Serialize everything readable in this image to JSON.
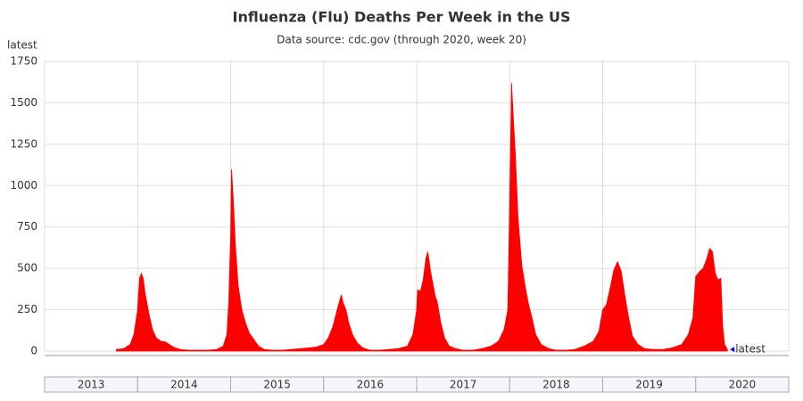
{
  "chart_data": {
    "type": "area",
    "title": "Influenza (Flu) Deaths Per Week in the US",
    "subtitle": "Data source: cdc.gov (through 2020, week 20)",
    "y_label": "latest",
    "annotation": "latest",
    "color": "#ff0000",
    "annotation_color": "#0000ff",
    "grid": true,
    "xlim": [
      2013,
      2021
    ],
    "xticks": [
      {
        "value": 2013,
        "label": "2013"
      },
      {
        "value": 2014,
        "label": "2014"
      },
      {
        "value": 2015,
        "label": "2015"
      },
      {
        "value": 2016,
        "label": "2016"
      },
      {
        "value": 2017,
        "label": "2017"
      },
      {
        "value": 2018,
        "label": "2018"
      },
      {
        "value": 2019,
        "label": "2019"
      },
      {
        "value": 2020,
        "label": "2020"
      }
    ],
    "ylim": [
      0,
      1750
    ],
    "yticks": [
      0,
      250,
      500,
      750,
      1000,
      1250,
      1500,
      1750
    ],
    "x": [
      2013.77,
      2013.85,
      2013.92,
      2013.96,
      2014.0,
      2014.02,
      2014.04,
      2014.06,
      2014.08,
      2014.12,
      2014.16,
      2014.2,
      2014.25,
      2014.3,
      2014.34,
      2014.4,
      2014.46,
      2014.55,
      2014.65,
      2014.75,
      2014.85,
      2014.92,
      2014.96,
      2014.98,
      2015.0,
      2015.01,
      2015.03,
      2015.05,
      2015.08,
      2015.12,
      2015.16,
      2015.2,
      2015.25,
      2015.3,
      2015.36,
      2015.45,
      2015.55,
      2015.65,
      2015.75,
      2015.85,
      2015.92,
      2016.0,
      2016.05,
      2016.1,
      2016.15,
      2016.19,
      2016.21,
      2016.24,
      2016.27,
      2016.31,
      2016.36,
      2016.42,
      2016.5,
      2016.6,
      2016.7,
      2016.8,
      2016.9,
      2016.96,
      2017.0,
      2017.01,
      2017.04,
      2017.07,
      2017.1,
      2017.12,
      2017.15,
      2017.2,
      2017.22,
      2017.26,
      2017.3,
      2017.35,
      2017.42,
      2017.5,
      2017.6,
      2017.7,
      2017.8,
      2017.88,
      2017.94,
      2017.98,
      2018.0,
      2018.02,
      2018.04,
      2018.06,
      2018.09,
      2018.13,
      2018.17,
      2018.2,
      2018.24,
      2018.28,
      2018.34,
      2018.42,
      2018.5,
      2018.6,
      2018.7,
      2018.8,
      2018.9,
      2018.96,
      2019.0,
      2019.04,
      2019.08,
      2019.12,
      2019.16,
      2019.2,
      2019.24,
      2019.28,
      2019.32,
      2019.38,
      2019.45,
      2019.55,
      2019.65,
      2019.75,
      2019.85,
      2019.92,
      2019.97,
      2020.0,
      2020.04,
      2020.08,
      2020.12,
      2020.15,
      2020.18,
      2020.21,
      2020.24,
      2020.27,
      2020.29,
      2020.31,
      2020.34
    ],
    "values": [
      10,
      15,
      40,
      100,
      250,
      440,
      470,
      440,
      350,
      230,
      130,
      80,
      60,
      55,
      40,
      20,
      10,
      5,
      5,
      5,
      10,
      30,
      100,
      300,
      700,
      1100,
      900,
      650,
      400,
      250,
      170,
      110,
      70,
      30,
      10,
      5,
      5,
      10,
      15,
      20,
      25,
      40,
      80,
      150,
      260,
      340,
      290,
      250,
      170,
      100,
      50,
      20,
      5,
      5,
      10,
      15,
      30,
      100,
      250,
      370,
      360,
      430,
      560,
      600,
      480,
      330,
      300,
      170,
      80,
      30,
      15,
      5,
      5,
      15,
      30,
      60,
      130,
      250,
      900,
      1620,
      1400,
      1200,
      800,
      520,
      380,
      290,
      200,
      100,
      40,
      15,
      5,
      5,
      10,
      30,
      60,
      120,
      250,
      280,
      380,
      490,
      540,
      480,
      330,
      200,
      90,
      40,
      15,
      10,
      10,
      20,
      40,
      100,
      200,
      450,
      480,
      500,
      560,
      620,
      600,
      470,
      430,
      440,
      150,
      40,
      10
    ]
  }
}
